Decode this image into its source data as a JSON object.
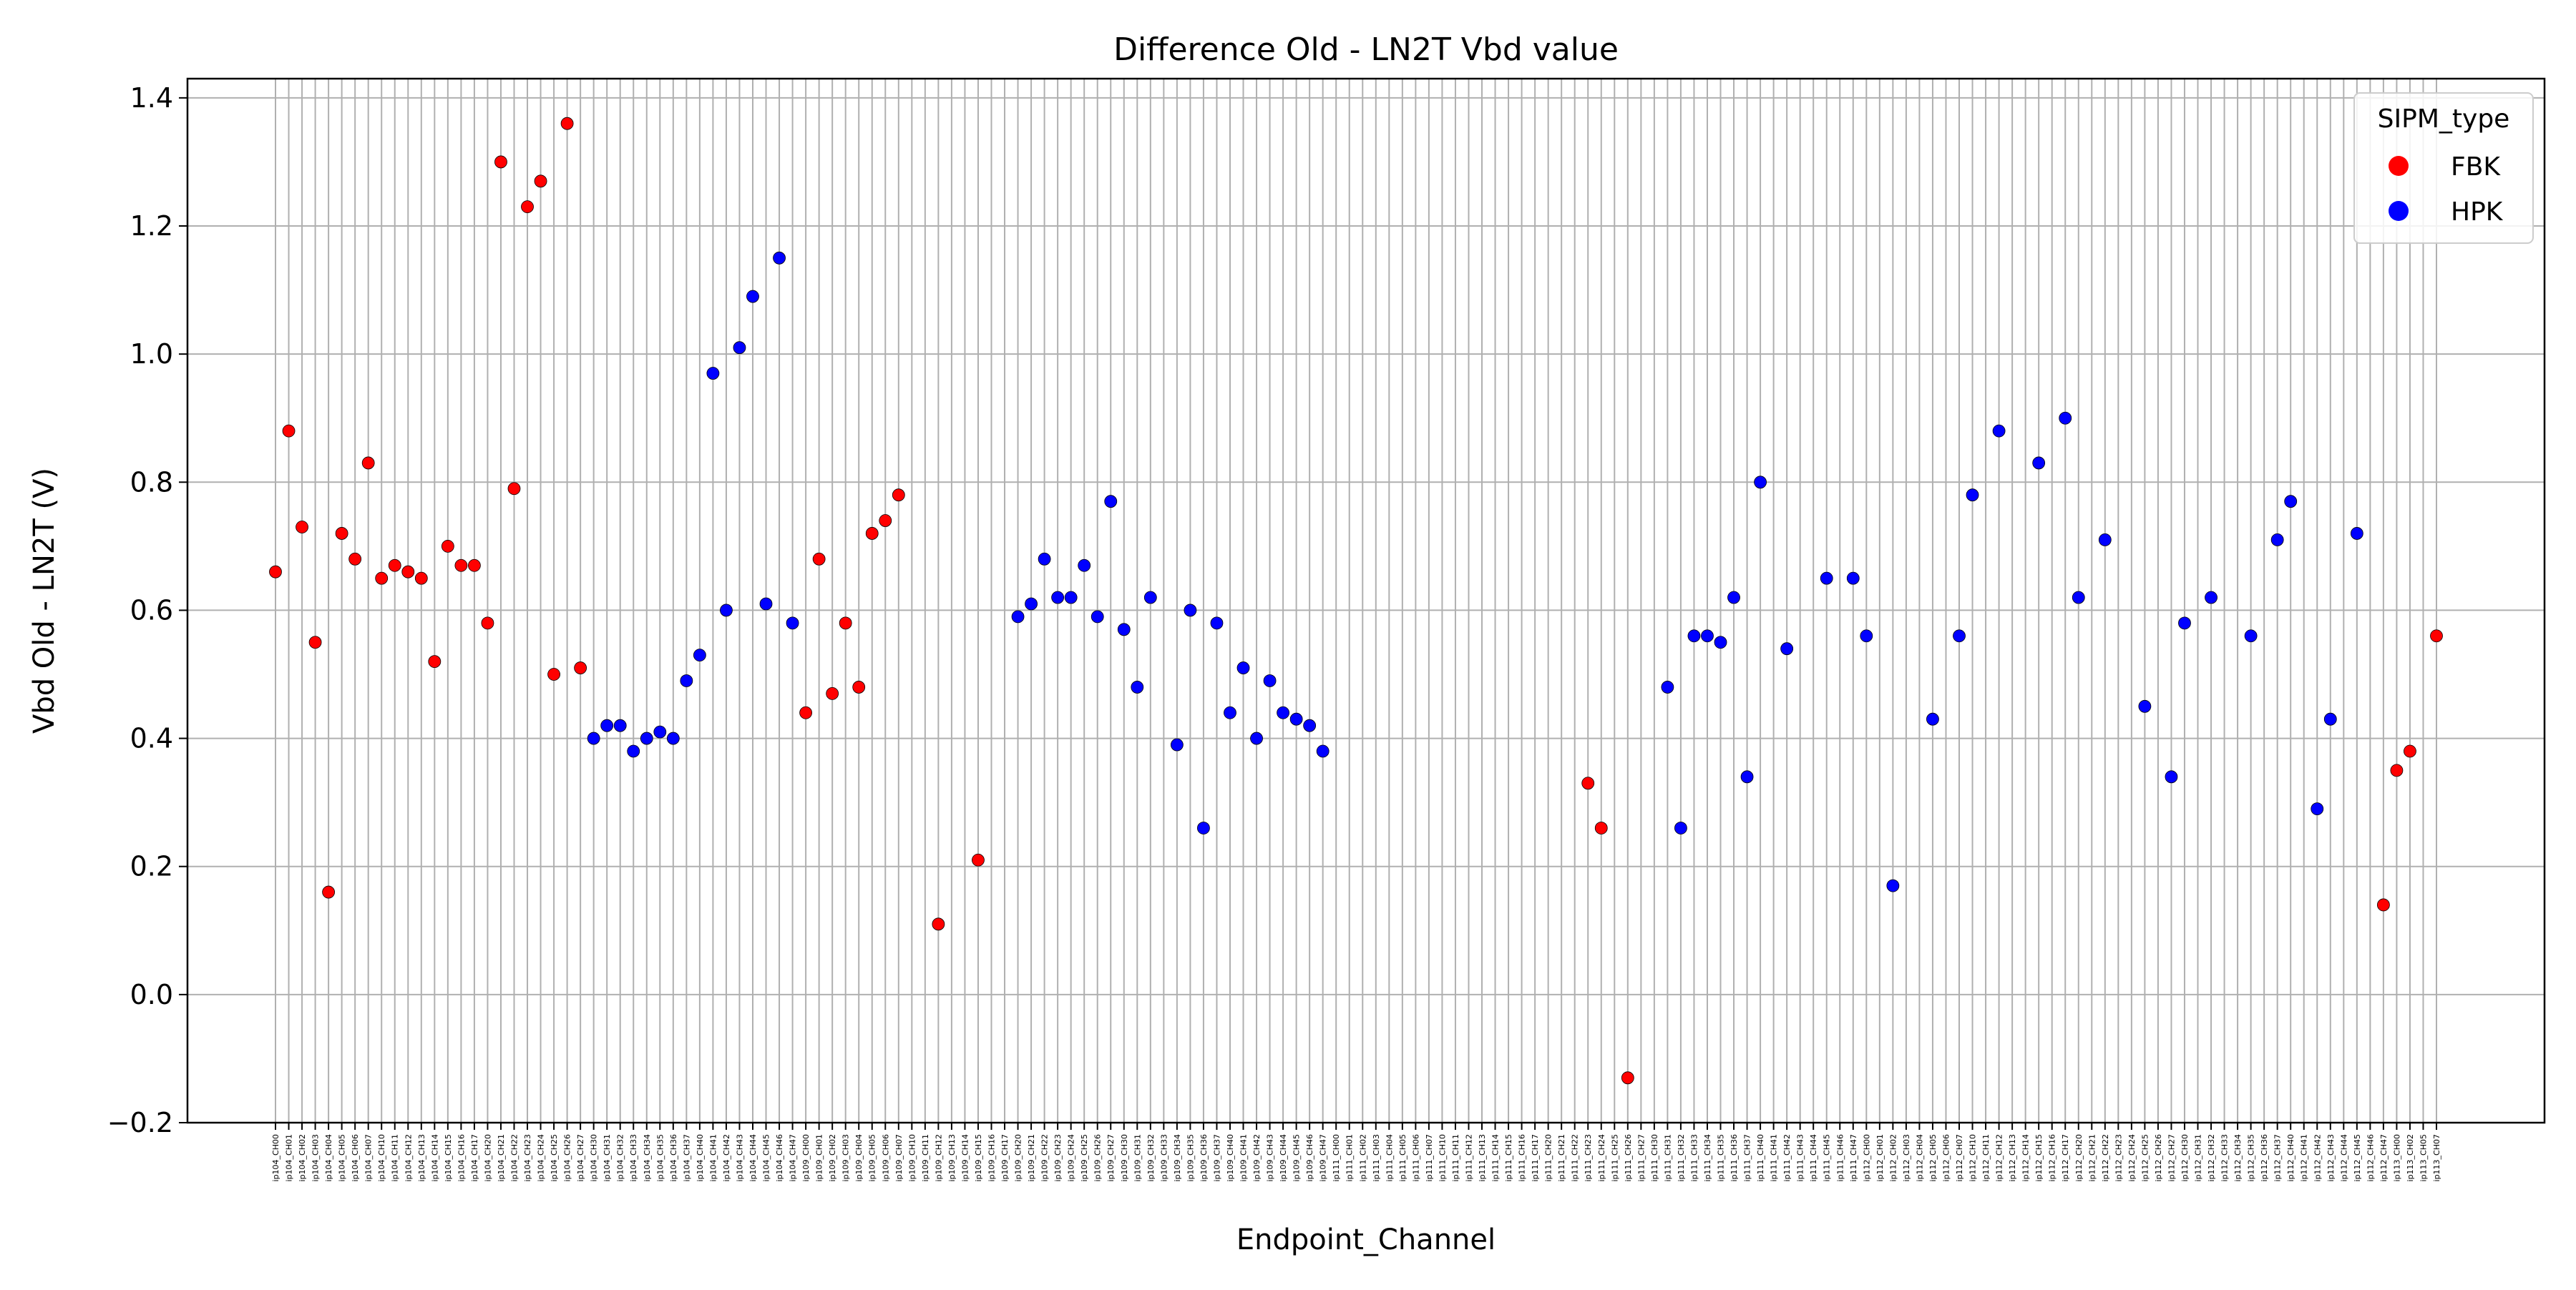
{
  "chart_data": {
    "type": "scatter",
    "title": "Difference Old - LN2T Vbd value",
    "xlabel": "Endpoint_Channel",
    "ylabel": "Vbd Old - LN2T (V)",
    "ylim": [
      -0.2,
      1.43
    ],
    "yticks": [
      "−0.2",
      "0.0",
      "0.2",
      "0.4",
      "0.6",
      "0.8",
      "1.0",
      "1.2",
      "1.4"
    ],
    "ytick_values": [
      -0.2,
      0.0,
      0.2,
      0.4,
      0.6,
      0.8,
      1.0,
      1.2,
      1.4
    ],
    "grid": true,
    "legend_position": "top-right",
    "legend_title": "SIPM_type",
    "categories": [
      "ip104_CH00",
      "ip104_CH01",
      "ip104_CH02",
      "ip104_CH03",
      "ip104_CH04",
      "ip104_CH05",
      "ip104_CH06",
      "ip104_CH07",
      "ip104_CH10",
      "ip104_CH11",
      "ip104_CH12",
      "ip104_CH13",
      "ip104_CH14",
      "ip104_CH15",
      "ip104_CH16",
      "ip104_CH17",
      "ip104_CH20",
      "ip104_CH21",
      "ip104_CH22",
      "ip104_CH23",
      "ip104_CH24",
      "ip104_CH25",
      "ip104_CH26",
      "ip104_CH27",
      "ip104_CH30",
      "ip104_CH31",
      "ip104_CH32",
      "ip104_CH33",
      "ip104_CH34",
      "ip104_CH35",
      "ip104_CH36",
      "ip104_CH37",
      "ip104_CH40",
      "ip104_CH41",
      "ip104_CH42",
      "ip104_CH43",
      "ip104_CH44",
      "ip104_CH45",
      "ip104_CH46",
      "ip104_CH47",
      "ip109_CH00",
      "ip109_CH01",
      "ip109_CH02",
      "ip109_CH03",
      "ip109_CH04",
      "ip109_CH05",
      "ip109_CH06",
      "ip109_CH07",
      "ip109_CH10",
      "ip109_CH11",
      "ip109_CH12",
      "ip109_CH13",
      "ip109_CH14",
      "ip109_CH15",
      "ip109_CH16",
      "ip109_CH17",
      "ip109_CH20",
      "ip109_CH21",
      "ip109_CH22",
      "ip109_CH23",
      "ip109_CH24",
      "ip109_CH25",
      "ip109_CH26",
      "ip109_CH27",
      "ip109_CH30",
      "ip109_CH31",
      "ip109_CH32",
      "ip109_CH33",
      "ip109_CH34",
      "ip109_CH35",
      "ip109_CH36",
      "ip109_CH37",
      "ip109_CH40",
      "ip109_CH41",
      "ip109_CH42",
      "ip109_CH43",
      "ip109_CH44",
      "ip109_CH45",
      "ip109_CH46",
      "ip109_CH47",
      "ip111_CH00",
      "ip111_CH01",
      "ip111_CH02",
      "ip111_CH03",
      "ip111_CH04",
      "ip111_CH05",
      "ip111_CH06",
      "ip111_CH07",
      "ip111_CH10",
      "ip111_CH11",
      "ip111_CH12",
      "ip111_CH13",
      "ip111_CH14",
      "ip111_CH15",
      "ip111_CH16",
      "ip111_CH17",
      "ip111_CH20",
      "ip111_CH21",
      "ip111_CH22",
      "ip111_CH23",
      "ip111_CH24",
      "ip111_CH25",
      "ip111_CH26",
      "ip111_CH27",
      "ip111_CH30",
      "ip111_CH31",
      "ip111_CH32",
      "ip111_CH33",
      "ip111_CH34",
      "ip111_CH35",
      "ip111_CH36",
      "ip111_CH37",
      "ip111_CH40",
      "ip111_CH41",
      "ip111_CH42",
      "ip111_CH43",
      "ip111_CH44",
      "ip111_CH45",
      "ip111_CH46",
      "ip111_CH47",
      "ip112_CH00",
      "ip112_CH01",
      "ip112_CH02",
      "ip112_CH03",
      "ip112_CH04",
      "ip112_CH05",
      "ip112_CH06",
      "ip112_CH07",
      "ip112_CH10",
      "ip112_CH11",
      "ip112_CH12",
      "ip112_CH13",
      "ip112_CH14",
      "ip112_CH15",
      "ip112_CH16",
      "ip112_CH17",
      "ip112_CH20",
      "ip112_CH21",
      "ip112_CH22",
      "ip112_CH23",
      "ip112_CH24",
      "ip112_CH25",
      "ip112_CH26",
      "ip112_CH27",
      "ip112_CH30",
      "ip112_CH31",
      "ip112_CH32",
      "ip112_CH33",
      "ip112_CH34",
      "ip112_CH35",
      "ip112_CH36",
      "ip112_CH37",
      "ip112_CH40",
      "ip112_CH41",
      "ip112_CH42",
      "ip112_CH43",
      "ip112_CH44",
      "ip112_CH45",
      "ip112_CH46",
      "ip112_CH47",
      "ip113_CH00",
      "ip113_CH02",
      "ip113_CH05",
      "ip113_CH07"
    ],
    "series": [
      {
        "name": "FBK",
        "color": "#ff0000",
        "points": [
          {
            "x": "ip104_CH00",
            "y": 0.66
          },
          {
            "x": "ip104_CH01",
            "y": 0.88
          },
          {
            "x": "ip104_CH02",
            "y": 0.73
          },
          {
            "x": "ip104_CH03",
            "y": 0.55
          },
          {
            "x": "ip104_CH04",
            "y": 0.16
          },
          {
            "x": "ip104_CH05",
            "y": 0.72
          },
          {
            "x": "ip104_CH06",
            "y": 0.68
          },
          {
            "x": "ip104_CH07",
            "y": 0.83
          },
          {
            "x": "ip104_CH10",
            "y": 0.65
          },
          {
            "x": "ip104_CH11",
            "y": 0.67
          },
          {
            "x": "ip104_CH12",
            "y": 0.66
          },
          {
            "x": "ip104_CH13",
            "y": 0.65
          },
          {
            "x": "ip104_CH14",
            "y": 0.52
          },
          {
            "x": "ip104_CH15",
            "y": 0.7
          },
          {
            "x": "ip104_CH16",
            "y": 0.67
          },
          {
            "x": "ip104_CH17",
            "y": 0.67
          },
          {
            "x": "ip104_CH20",
            "y": 0.58
          },
          {
            "x": "ip104_CH21",
            "y": 1.3
          },
          {
            "x": "ip104_CH22",
            "y": 0.79
          },
          {
            "x": "ip104_CH23",
            "y": 1.23
          },
          {
            "x": "ip104_CH24",
            "y": 1.27
          },
          {
            "x": "ip104_CH25",
            "y": 0.5
          },
          {
            "x": "ip104_CH26",
            "y": 1.36
          },
          {
            "x": "ip104_CH27",
            "y": 0.51
          },
          {
            "x": "ip109_CH00",
            "y": 0.44
          },
          {
            "x": "ip109_CH01",
            "y": 0.68
          },
          {
            "x": "ip109_CH02",
            "y": 0.47
          },
          {
            "x": "ip109_CH03",
            "y": 0.58
          },
          {
            "x": "ip109_CH04",
            "y": 0.48
          },
          {
            "x": "ip109_CH05",
            "y": 0.72
          },
          {
            "x": "ip109_CH06",
            "y": 0.74
          },
          {
            "x": "ip109_CH07",
            "y": 0.78
          },
          {
            "x": "ip109_CH12",
            "y": 0.11
          },
          {
            "x": "ip109_CH15",
            "y": 0.21
          },
          {
            "x": "ip111_CH23",
            "y": 0.33
          },
          {
            "x": "ip111_CH24",
            "y": 0.26
          },
          {
            "x": "ip111_CH26",
            "y": -0.13
          },
          {
            "x": "ip112_CH47",
            "y": 0.14
          },
          {
            "x": "ip113_CH00",
            "y": 0.35
          },
          {
            "x": "ip113_CH02",
            "y": 0.38
          },
          {
            "x": "ip113_CH07",
            "y": 0.56
          }
        ]
      },
      {
        "name": "HPK",
        "color": "#0000ff",
        "points": [
          {
            "x": "ip104_CH30",
            "y": 0.4
          },
          {
            "x": "ip104_CH31",
            "y": 0.42
          },
          {
            "x": "ip104_CH32",
            "y": 0.42
          },
          {
            "x": "ip104_CH33",
            "y": 0.38
          },
          {
            "x": "ip104_CH34",
            "y": 0.4
          },
          {
            "x": "ip104_CH35",
            "y": 0.41
          },
          {
            "x": "ip104_CH36",
            "y": 0.4
          },
          {
            "x": "ip104_CH37",
            "y": 0.49
          },
          {
            "x": "ip104_CH40",
            "y": 0.53
          },
          {
            "x": "ip104_CH41",
            "y": 0.97
          },
          {
            "x": "ip104_CH42",
            "y": 0.6
          },
          {
            "x": "ip104_CH43",
            "y": 1.01
          },
          {
            "x": "ip104_CH44",
            "y": 1.09
          },
          {
            "x": "ip104_CH45",
            "y": 0.61
          },
          {
            "x": "ip104_CH46",
            "y": 1.15
          },
          {
            "x": "ip104_CH47",
            "y": 0.58
          },
          {
            "x": "ip109_CH20",
            "y": 0.59
          },
          {
            "x": "ip109_CH21",
            "y": 0.61
          },
          {
            "x": "ip109_CH22",
            "y": 0.68
          },
          {
            "x": "ip109_CH23",
            "y": 0.62
          },
          {
            "x": "ip109_CH24",
            "y": 0.62
          },
          {
            "x": "ip109_CH25",
            "y": 0.67
          },
          {
            "x": "ip109_CH26",
            "y": 0.59
          },
          {
            "x": "ip109_CH27",
            "y": 0.77
          },
          {
            "x": "ip109_CH30",
            "y": 0.57
          },
          {
            "x": "ip109_CH31",
            "y": 0.48
          },
          {
            "x": "ip109_CH32",
            "y": 0.62
          },
          {
            "x": "ip109_CH34",
            "y": 0.39
          },
          {
            "x": "ip109_CH35",
            "y": 0.6
          },
          {
            "x": "ip109_CH36",
            "y": 0.26
          },
          {
            "x": "ip109_CH37",
            "y": 0.58
          },
          {
            "x": "ip109_CH40",
            "y": 0.44
          },
          {
            "x": "ip109_CH41",
            "y": 0.51
          },
          {
            "x": "ip109_CH42",
            "y": 0.4
          },
          {
            "x": "ip109_CH43",
            "y": 0.49
          },
          {
            "x": "ip109_CH44",
            "y": 0.44
          },
          {
            "x": "ip109_CH45",
            "y": 0.43
          },
          {
            "x": "ip109_CH46",
            "y": 0.42
          },
          {
            "x": "ip109_CH47",
            "y": 0.38
          },
          {
            "x": "ip111_CH31",
            "y": 0.48
          },
          {
            "x": "ip111_CH32",
            "y": 0.26
          },
          {
            "x": "ip111_CH33",
            "y": 0.56
          },
          {
            "x": "ip111_CH34",
            "y": 0.56
          },
          {
            "x": "ip111_CH35",
            "y": 0.55
          },
          {
            "x": "ip111_CH36",
            "y": 0.62
          },
          {
            "x": "ip111_CH37",
            "y": 0.34
          },
          {
            "x": "ip111_CH40",
            "y": 0.8
          },
          {
            "x": "ip111_CH42",
            "y": 0.54
          },
          {
            "x": "ip111_CH45",
            "y": 0.65
          },
          {
            "x": "ip111_CH47",
            "y": 0.65
          },
          {
            "x": "ip112_CH00",
            "y": 0.56
          },
          {
            "x": "ip112_CH02",
            "y": 0.17
          },
          {
            "x": "ip112_CH05",
            "y": 0.43
          },
          {
            "x": "ip112_CH07",
            "y": 0.56
          },
          {
            "x": "ip112_CH10",
            "y": 0.78
          },
          {
            "x": "ip112_CH12",
            "y": 0.88
          },
          {
            "x": "ip112_CH15",
            "y": 0.83
          },
          {
            "x": "ip112_CH17",
            "y": 0.9
          },
          {
            "x": "ip112_CH20",
            "y": 0.62
          },
          {
            "x": "ip112_CH22",
            "y": 0.71
          },
          {
            "x": "ip112_CH25",
            "y": 0.45
          },
          {
            "x": "ip112_CH27",
            "y": 0.34
          },
          {
            "x": "ip112_CH30",
            "y": 0.58
          },
          {
            "x": "ip112_CH32",
            "y": 0.62
          },
          {
            "x": "ip112_CH35",
            "y": 0.56
          },
          {
            "x": "ip112_CH37",
            "y": 0.71
          },
          {
            "x": "ip112_CH40",
            "y": 0.77
          },
          {
            "x": "ip112_CH42",
            "y": 0.29
          },
          {
            "x": "ip112_CH43",
            "y": 0.43
          },
          {
            "x": "ip112_CH45",
            "y": 0.72
          }
        ]
      }
    ]
  }
}
